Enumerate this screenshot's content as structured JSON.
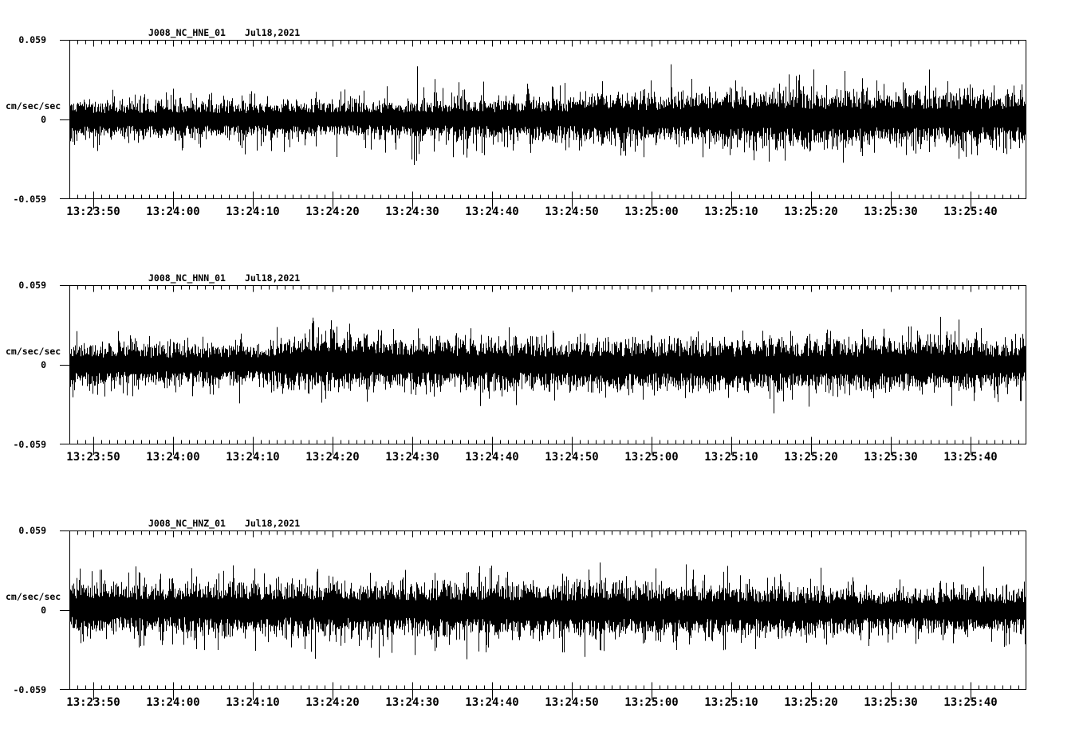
{
  "window": {
    "background": "#ffffff",
    "trace_color": "#000000"
  },
  "chart_data": [
    {
      "type": "line",
      "title": "J008_NC_HNE_01  Jul18,2021",
      "station": "J008_NC_HNE_01",
      "date": "Jul18,2021",
      "ylabel": "cm/sec/sec",
      "ylim": [
        -0.059,
        0.059
      ],
      "y_tick_labels": [
        "0.059",
        "0",
        "-0.059"
      ],
      "x_tick_labels": [
        "13:23:50",
        "13:24:00",
        "13:24:10",
        "13:24:20",
        "13:24:30",
        "13:24:40",
        "13:24:50",
        "13:25:00",
        "13:25:10",
        "13:25:20",
        "13:25:30",
        "13:25:40"
      ],
      "x_start": "13:23:47",
      "x_end": "13:25:47",
      "x_major_interval_sec": 10,
      "x_minor_interval_sec": 1,
      "grid": false,
      "signal": "continuous broadband acceleration noise; amplitudes below are peak-envelope estimates in cm/sec/sec vs seconds after 13:23:47",
      "envelope_core": [
        [
          0,
          0.0095
        ],
        [
          20,
          0.009
        ],
        [
          40,
          0.009
        ],
        [
          45,
          0.01
        ],
        [
          55,
          0.01
        ],
        [
          65,
          0.011
        ],
        [
          70,
          0.012
        ],
        [
          80,
          0.013
        ],
        [
          90,
          0.014
        ],
        [
          100,
          0.013
        ],
        [
          110,
          0.013
        ],
        [
          120,
          0.013
        ]
      ],
      "envelope_peak": [
        [
          0,
          0.024
        ],
        [
          15,
          0.023
        ],
        [
          30,
          0.025
        ],
        [
          42,
          0.027
        ],
        [
          44,
          0.03
        ],
        [
          50,
          0.029
        ],
        [
          60,
          0.027
        ],
        [
          70,
          0.028
        ],
        [
          75,
          0.03
        ],
        [
          85,
          0.032
        ],
        [
          95,
          0.034
        ],
        [
          105,
          0.031
        ],
        [
          112,
          0.03
        ],
        [
          120,
          0.029
        ]
      ],
      "baseline_offset": [
        [
          0,
          0
        ],
        [
          60,
          0.0005
        ],
        [
          80,
          0.001
        ],
        [
          100,
          0.001
        ],
        [
          120,
          0.0008
        ]
      ],
      "spikes": [
        [
          22.0,
          -0.026
        ],
        [
          33.5,
          -0.028
        ],
        [
          42.9,
          -0.03
        ],
        [
          43.2,
          -0.034
        ],
        [
          43.5,
          -0.031
        ],
        [
          43.8,
          -0.026
        ],
        [
          43.6,
          0.039
        ],
        [
          75.4,
          0.04
        ],
        [
          93.3,
          0.036
        ],
        [
          97.2,
          0.035
        ],
        [
          107.8,
          0.036
        ]
      ],
      "render_seed": 101
    },
    {
      "type": "line",
      "title": "J008_NC_HNN_01  Jul18,2021",
      "station": "J008_NC_HNN_01",
      "date": "Jul18,2021",
      "ylabel": "cm/sec/sec",
      "ylim": [
        -0.059,
        0.059
      ],
      "y_tick_labels": [
        "0.059",
        "0",
        "-0.059"
      ],
      "x_tick_labels": [
        "13:23:50",
        "13:24:00",
        "13:24:10",
        "13:24:20",
        "13:24:30",
        "13:24:40",
        "13:24:50",
        "13:25:00",
        "13:25:10",
        "13:25:20",
        "13:25:30",
        "13:25:40"
      ],
      "x_start": "13:23:47",
      "x_end": "13:25:47",
      "x_major_interval_sec": 10,
      "x_minor_interval_sec": 1,
      "grid": false,
      "signal": "continuous broadband acceleration noise; amplitudes below are peak-envelope estimates in cm/sec/sec vs seconds after 13:23:47",
      "envelope_core": [
        [
          0,
          0.011
        ],
        [
          10,
          0.01
        ],
        [
          20,
          0.0095
        ],
        [
          25,
          0.01
        ],
        [
          27,
          0.012
        ],
        [
          30,
          0.014
        ],
        [
          33,
          0.014
        ],
        [
          38,
          0.013
        ],
        [
          45,
          0.012
        ],
        [
          60,
          0.012
        ],
        [
          75,
          0.012
        ],
        [
          90,
          0.012
        ],
        [
          100,
          0.012
        ],
        [
          108,
          0.013
        ],
        [
          115,
          0.012
        ],
        [
          120,
          0.011
        ]
      ],
      "envelope_peak": [
        [
          0,
          0.026
        ],
        [
          12,
          0.024
        ],
        [
          22,
          0.023
        ],
        [
          27,
          0.029
        ],
        [
          30,
          0.031
        ],
        [
          35,
          0.03
        ],
        [
          42,
          0.028
        ],
        [
          55,
          0.028
        ],
        [
          70,
          0.027
        ],
        [
          85,
          0.028
        ],
        [
          95,
          0.028
        ],
        [
          105,
          0.03
        ],
        [
          110,
          0.032
        ],
        [
          118,
          0.028
        ],
        [
          120,
          0.027
        ]
      ],
      "baseline_offset": [
        [
          0,
          0
        ],
        [
          25,
          0.0005
        ],
        [
          29,
          0.002
        ],
        [
          34,
          0.002
        ],
        [
          40,
          0.001
        ],
        [
          60,
          0
        ],
        [
          100,
          0
        ],
        [
          110,
          0.0005
        ],
        [
          120,
          0
        ]
      ],
      "spikes": [
        [
          21.3,
          -0.029
        ],
        [
          30.5,
          0.033
        ],
        [
          32.8,
          0.031
        ],
        [
          51.5,
          -0.031
        ],
        [
          56.0,
          -0.03
        ],
        [
          88.3,
          -0.036
        ],
        [
          92.7,
          -0.031
        ],
        [
          109.2,
          0.035
        ],
        [
          111.5,
          0.033
        ]
      ],
      "render_seed": 202
    },
    {
      "type": "line",
      "title": "J008_NC_HNZ_01  Jul18,2021",
      "station": "J008_NC_HNZ_01",
      "date": "Jul18,2021",
      "ylabel": "cm/sec/sec",
      "ylim": [
        -0.059,
        0.059
      ],
      "y_tick_labels": [
        "0.059",
        "0",
        "-0.059"
      ],
      "x_tick_labels": [
        "13:23:50",
        "13:24:00",
        "13:24:10",
        "13:24:20",
        "13:24:30",
        "13:24:40",
        "13:24:50",
        "13:25:00",
        "13:25:10",
        "13:25:20",
        "13:25:30",
        "13:25:40"
      ],
      "x_start": "13:23:47",
      "x_end": "13:25:47",
      "x_major_interval_sec": 10,
      "x_minor_interval_sec": 1,
      "grid": false,
      "signal": "continuous broadband acceleration noise; amplitudes below are peak-envelope estimates in cm/sec/sec vs seconds after 13:23:47",
      "envelope_core": [
        [
          0,
          0.013
        ],
        [
          20,
          0.013
        ],
        [
          40,
          0.013
        ],
        [
          60,
          0.013
        ],
        [
          75,
          0.013
        ],
        [
          90,
          0.012
        ],
        [
          95,
          0.011
        ],
        [
          105,
          0.01
        ],
        [
          112,
          0.01
        ],
        [
          117,
          0.011
        ],
        [
          120,
          0.011
        ]
      ],
      "envelope_peak": [
        [
          0,
          0.03
        ],
        [
          15,
          0.031
        ],
        [
          30,
          0.032
        ],
        [
          45,
          0.033
        ],
        [
          60,
          0.032
        ],
        [
          70,
          0.032
        ],
        [
          80,
          0.031
        ],
        [
          90,
          0.028
        ],
        [
          100,
          0.026
        ],
        [
          108,
          0.025
        ],
        [
          114,
          0.027
        ],
        [
          120,
          0.028
        ]
      ],
      "baseline_offset": [
        [
          0,
          0.0015
        ],
        [
          30,
          0.001
        ],
        [
          60,
          0.0005
        ],
        [
          90,
          -0.0005
        ],
        [
          110,
          -0.001
        ],
        [
          120,
          -0.0005
        ]
      ],
      "spikes": [
        [
          8.3,
          0.031
        ],
        [
          20.5,
          0.032
        ],
        [
          30.8,
          -0.037
        ],
        [
          38.8,
          -0.036
        ],
        [
          43.3,
          -0.034
        ],
        [
          49.8,
          -0.037
        ],
        [
          64.6,
          -0.035
        ],
        [
          66.5,
          0.035
        ],
        [
          77.3,
          0.034
        ],
        [
          82.5,
          0.033
        ],
        [
          94.2,
          0.032
        ],
        [
          114.6,
          0.033
        ]
      ],
      "render_seed": 303
    }
  ]
}
